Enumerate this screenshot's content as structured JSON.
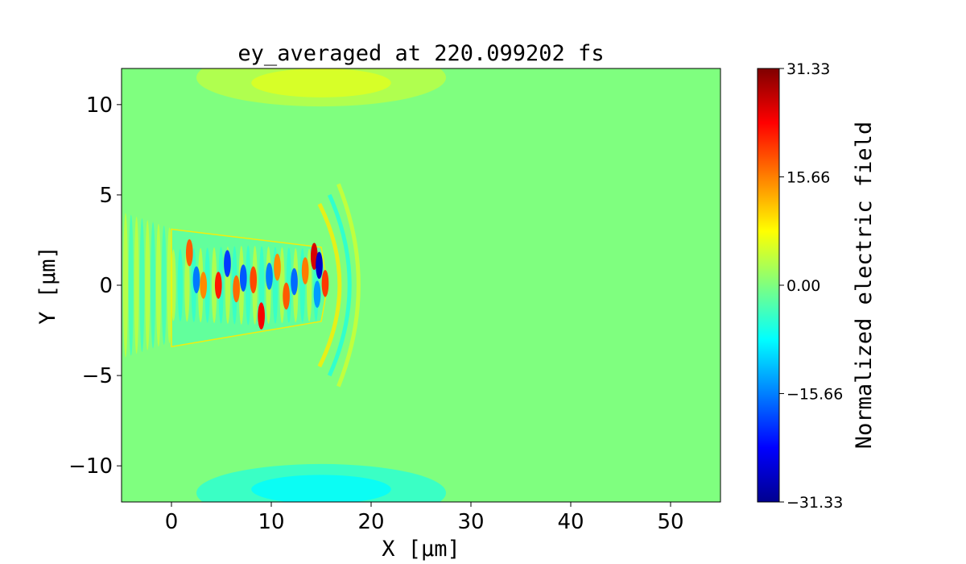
{
  "chart_data": {
    "type": "heatmap",
    "title": "ey_averaged at 220.099202 fs",
    "xlabel": "X [μm]",
    "ylabel": "Y [μm]",
    "xlim": [
      -5,
      55
    ],
    "ylim": [
      -12,
      12
    ],
    "x_ticks": [
      0,
      10,
      20,
      30,
      40,
      50
    ],
    "x_tick_labels": [
      "0",
      "10",
      "20",
      "30",
      "40",
      "50"
    ],
    "y_ticks": [
      -10,
      -5,
      0,
      5,
      10
    ],
    "y_tick_labels": [
      "−10",
      "−5",
      "0",
      "5",
      "10"
    ],
    "grid": false,
    "colormap": "jet",
    "colorbar": {
      "label": "Normalized electric field",
      "range": [
        -31.33,
        31.33
      ],
      "ticks": [
        -31.33,
        -15.66,
        0.0,
        15.66,
        31.33
      ],
      "tick_labels": [
        "−31.33",
        "−15.66",
        "0.00",
        "15.66",
        "31.33"
      ],
      "levels": 40
    },
    "field_features": {
      "background_value": 0.0,
      "channel": {
        "x_range": [
          0,
          15
        ],
        "y_range": [
          -2.2,
          2.2
        ]
      },
      "hotspots": [
        {
          "x": 1.8,
          "y": 1.8,
          "value": 18
        },
        {
          "x": 2.5,
          "y": 0.3,
          "value": -16
        },
        {
          "x": 3.2,
          "y": 0.0,
          "value": 15
        },
        {
          "x": 4.7,
          "y": 0.0,
          "value": 22
        },
        {
          "x": 5.6,
          "y": 1.2,
          "value": -20
        },
        {
          "x": 6.5,
          "y": -0.2,
          "value": 17
        },
        {
          "x": 7.2,
          "y": 0.4,
          "value": -18
        },
        {
          "x": 8.2,
          "y": 0.3,
          "value": 19
        },
        {
          "x": 9.0,
          "y": -1.7,
          "value": 24
        },
        {
          "x": 9.8,
          "y": 0.5,
          "value": -16
        },
        {
          "x": 10.6,
          "y": 1.0,
          "value": 15
        },
        {
          "x": 11.5,
          "y": -0.6,
          "value": 18
        },
        {
          "x": 12.3,
          "y": 0.2,
          "value": -17
        },
        {
          "x": 13.4,
          "y": 0.8,
          "value": 16
        },
        {
          "x": 14.3,
          "y": 1.6,
          "value": 26
        },
        {
          "x": 14.8,
          "y": 1.1,
          "value": -27
        },
        {
          "x": 15.4,
          "y": 0.1,
          "value": 20
        },
        {
          "x": 14.6,
          "y": -0.5,
          "value": -14
        }
      ]
    }
  }
}
